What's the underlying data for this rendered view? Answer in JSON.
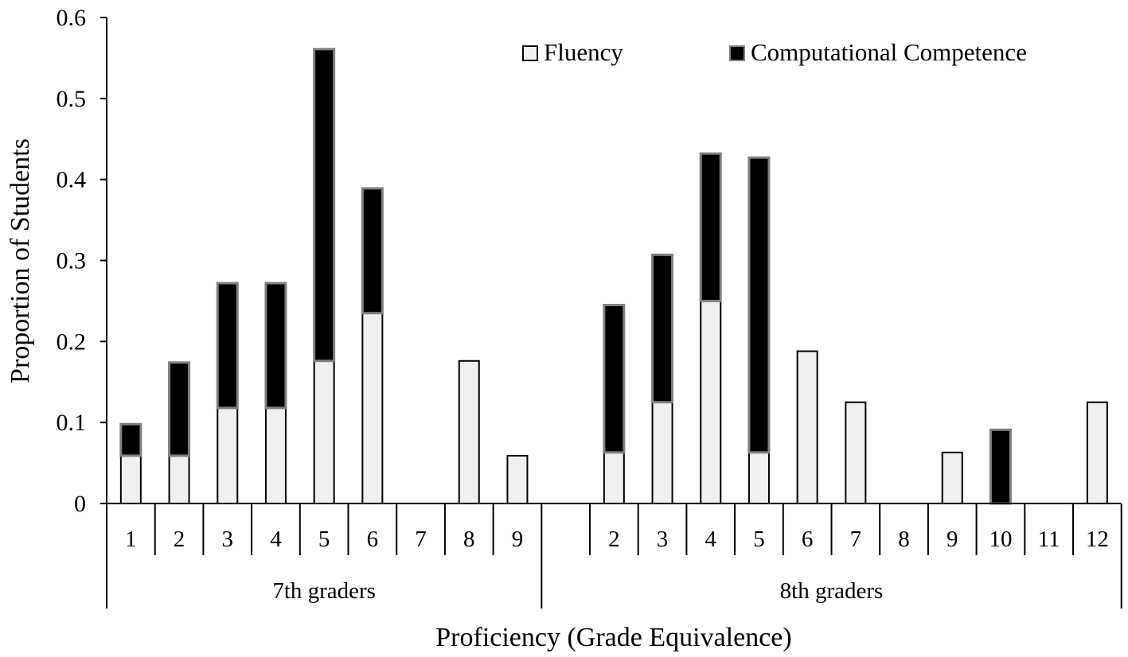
{
  "chart_data": {
    "type": "bar",
    "stacked": true,
    "xlabel": "Proficiency (Grade Equivalence)",
    "ylabel": "Proportion of  Students",
    "ylim": [
      0,
      0.6
    ],
    "yticks": [
      "0",
      "0.1",
      "0.2",
      "0.3",
      "0.4",
      "0.5",
      "0.6"
    ],
    "legend_position": "top-right",
    "groups": [
      {
        "label": "7th graders",
        "categories": [
          "1",
          "2",
          "3",
          "4",
          "5",
          "6",
          "7",
          "8",
          "9"
        ]
      },
      {
        "label": "8th graders",
        "categories": [
          "",
          "2",
          "3",
          "4",
          "5",
          "6",
          "7",
          "8",
          "9",
          "10",
          "11",
          "12"
        ]
      }
    ],
    "series": [
      {
        "name": "Fluency",
        "color": "#f0f0f0",
        "values": [
          0.059,
          0.059,
          0.118,
          0.118,
          0.176,
          0.235,
          0,
          0.176,
          0.059,
          null,
          0.063,
          0.125,
          0.25,
          0.063,
          0.188,
          0.125,
          0,
          0.063,
          0,
          0,
          0.125
        ]
      },
      {
        "name": "Computational Competence",
        "color": "#000000",
        "values": [
          0.039,
          0.115,
          0.154,
          0.154,
          0.385,
          0.154,
          0,
          0,
          0,
          null,
          0.182,
          0.182,
          0.182,
          0.364,
          0,
          0,
          0,
          0,
          0.091,
          0,
          0
        ]
      }
    ]
  }
}
